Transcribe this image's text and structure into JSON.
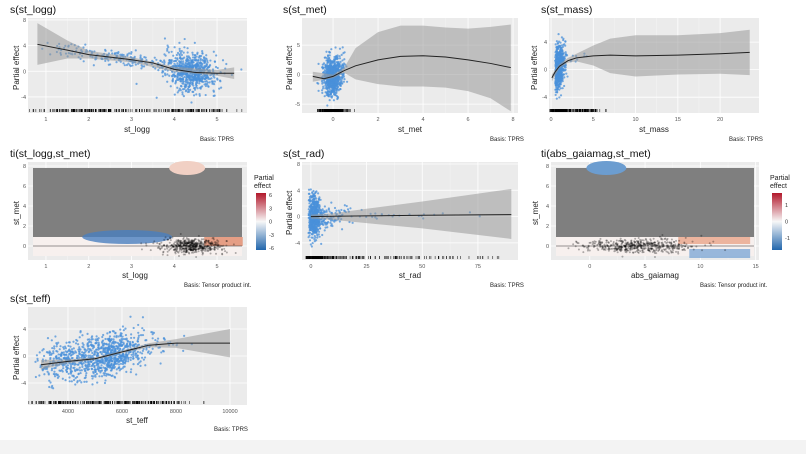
{
  "chart_data": [
    {
      "type": "scatter",
      "title": "s(st_logg)",
      "xlabel": "st_logg",
      "ylabel": "Partial effect",
      "caption": "Basis: TPRS",
      "xlim": [
        0.58,
        5.7
      ],
      "ylim": [
        -6.5,
        8.3
      ],
      "xticks": [
        1,
        2,
        3,
        4,
        5
      ],
      "yticks": [
        -4,
        0,
        4,
        8
      ],
      "smooth": {
        "x": [
          0.8,
          1.5,
          2,
          2.5,
          3,
          3.5,
          4,
          4.5,
          5,
          5.4
        ],
        "y": [
          4.2,
          3.3,
          2.6,
          2.2,
          1.8,
          1.3,
          0.3,
          -0.2,
          -0.3,
          -0.3
        ]
      },
      "ci": {
        "x": [
          0.8,
          1.5,
          2,
          3,
          4,
          5,
          5.4
        ],
        "upper": [
          7.5,
          4.8,
          3.2,
          2.2,
          0.7,
          0.2,
          0.6
        ],
        "lower": [
          1,
          2,
          2,
          1.4,
          -0.1,
          -0.7,
          -1.2
        ]
      },
      "rug": true,
      "grid": true
    },
    {
      "type": "scatter",
      "title": "s(st_met)",
      "xlabel": "st_met",
      "ylabel": "Partial effect",
      "caption": "Basis: TPRS",
      "xlim": [
        -1.38,
        8.22
      ],
      "ylim": [
        -6.5,
        9.6
      ],
      "xticks": [
        0,
        2,
        4,
        6,
        8
      ],
      "yticks": [
        -5,
        0,
        5
      ],
      "smooth": {
        "x": [
          -0.9,
          -0.4,
          0,
          0.5,
          1,
          2,
          3,
          4,
          5,
          6,
          7,
          7.9
        ],
        "y": [
          -0.3,
          -0.7,
          -0.3,
          0.7,
          1.5,
          2.5,
          3.1,
          3.2,
          3.0,
          2.5,
          1.9,
          1.2
        ]
      },
      "ci": {
        "x": [
          -0.9,
          0,
          0.5,
          1,
          2,
          3,
          4,
          5,
          6,
          7,
          7.9
        ],
        "upper": [
          0.5,
          0,
          1.2,
          4.5,
          7.2,
          8.3,
          8.3,
          8,
          7.8,
          8.1,
          8.5
        ],
        "lower": [
          -1.2,
          -0.6,
          0.3,
          -0.8,
          -1.6,
          -2,
          -2,
          -2.2,
          -2.8,
          -4,
          -6.2
        ]
      },
      "rug": true,
      "grid": true
    },
    {
      "type": "scatter",
      "title": "s(st_mass)",
      "xlabel": "st_mass",
      "ylabel": "Partial effect",
      "caption": "Basis: TPRS",
      "xlim": [
        -0.24,
        24.6
      ],
      "ylim": [
        -6.3,
        7.5
      ],
      "xticks": [
        0,
        5,
        10,
        15,
        20
      ],
      "yticks": [
        -4,
        0,
        4
      ],
      "smooth": {
        "x": [
          0.1,
          0.5,
          1,
          2,
          3,
          5,
          7,
          10,
          15,
          20,
          23.5
        ],
        "y": [
          -1.2,
          -0.3,
          0.5,
          1.3,
          1.7,
          2.0,
          2.1,
          2.0,
          2.1,
          2.3,
          2.5
        ]
      },
      "ci": {
        "x": [
          0.1,
          1,
          2,
          3,
          5,
          7,
          10,
          15,
          20,
          23.5
        ],
        "upper": [
          -0.7,
          0.8,
          1.7,
          2.3,
          3.5,
          4.5,
          5,
          5,
          5.3,
          5.8
        ],
        "lower": [
          -1.7,
          0.2,
          1,
          1.2,
          0.6,
          -0.5,
          -1,
          -0.7,
          -0.6,
          -0.8
        ]
      },
      "rug": true,
      "grid": true
    },
    {
      "type": "heatmap",
      "title": "ti(st_logg,st_met)",
      "xlabel": "st_logg",
      "ylabel": "st_met",
      "caption": "Basis: Tensor product int.",
      "xlim": [
        0.58,
        5.7
      ],
      "ylim": [
        -1.4,
        8.4
      ],
      "xticks": [
        1,
        2,
        3,
        4,
        5
      ],
      "yticks": [
        0,
        2,
        4,
        6,
        8
      ],
      "legend": {
        "title": "Partial effect",
        "ticks": [
          6,
          3,
          0,
          -3,
          -6
        ],
        "colors": [
          "#b2182b",
          "#f7f7f7",
          "#2166ac"
        ]
      },
      "grid": true
    },
    {
      "type": "scatter",
      "title": "s(st_rad)",
      "xlabel": "st_rad",
      "ylabel": "Partial effect",
      "caption": "Basis: TPRS",
      "xlim": [
        -4,
        93
      ],
      "ylim": [
        -6.6,
        8.3
      ],
      "xticks": [
        0,
        25,
        50,
        75
      ],
      "yticks": [
        -4,
        0,
        4,
        8
      ],
      "smooth": {
        "x": [
          0,
          10,
          25,
          50,
          90
        ],
        "y": [
          0,
          0.05,
          0.1,
          0.2,
          0.3
        ]
      },
      "ci": {
        "x": [
          0,
          10,
          25,
          50,
          90
        ],
        "upper": [
          0.3,
          0.5,
          1.2,
          2.3,
          4.2
        ],
        "lower": [
          -0.3,
          -0.5,
          -1,
          -1.8,
          -3.4
        ]
      },
      "rug": true,
      "grid": true
    },
    {
      "type": "heatmap",
      "title": "ti(abs_gaiamag,st_met)",
      "xlabel": "abs_gaiamag",
      "ylabel": "st_met",
      "caption": "Basis: Tensor product int.",
      "xlim": [
        -3.5,
        15.3
      ],
      "ylim": [
        -1.4,
        8.4
      ],
      "xticks": [
        0,
        5,
        10,
        15
      ],
      "yticks": [
        0,
        2,
        4,
        6,
        8
      ],
      "legend": {
        "title": "Partial effect",
        "ticks": [
          1,
          0,
          -1
        ],
        "colors": [
          "#b2182b",
          "#f7f7f7",
          "#2166ac"
        ]
      },
      "grid": true
    },
    {
      "type": "scatter",
      "title": "s(st_teff)",
      "xlabel": "st_teff",
      "ylabel": "Partial effect",
      "caption": "Basis: TPRS",
      "xlim": [
        2519,
        10630
      ],
      "ylim": [
        -7.26,
        7.26
      ],
      "xticks": [
        4000,
        6000,
        8000,
        10000
      ],
      "yticks": [
        -4,
        0,
        4
      ],
      "smooth": {
        "x": [
          3000,
          4000,
          5000,
          6000,
          7000,
          8000,
          10000
        ],
        "y": [
          -1.3,
          -0.8,
          -0.4,
          0.6,
          1.6,
          1.9,
          1.9
        ]
      },
      "ci": {
        "x": [
          3000,
          4000,
          5000,
          6000,
          7000,
          8000,
          10000
        ],
        "upper": [
          -0.6,
          -0.5,
          -0.2,
          0.8,
          1.9,
          2.5,
          4.0
        ],
        "lower": [
          -2,
          -1.1,
          -0.6,
          0.4,
          1.3,
          1.2,
          -0.2
        ]
      },
      "rug": true,
      "grid": true
    }
  ],
  "colors": {
    "points": "#4a90d9",
    "panel_bg": "#ebebeb",
    "ci": "#999999",
    "smooth": "#222222",
    "excluded": "#7f7f7f"
  }
}
